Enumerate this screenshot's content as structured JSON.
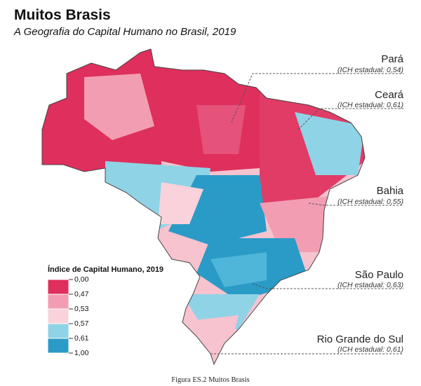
{
  "title": "Muitos Brasis",
  "subtitle": "A Geografia do Capital Humano no Brasil, 2019",
  "callouts": [
    {
      "name": "Pará",
      "label": "(ICH estadual: 0,54)"
    },
    {
      "name": "Ceará",
      "label": "(ICH estadual: 0,61)"
    },
    {
      "name": "Bahia",
      "label": "(ICH estadual: 0,55)"
    },
    {
      "name": "São Paulo",
      "label": "(ICH estadual: 0,63)"
    },
    {
      "name": "Rio Grande do Sul",
      "label": "(ICH estadual: 0,61)"
    }
  ],
  "legend": {
    "title": "Índice de Capital Humano, 2019",
    "labels": [
      "0,00",
      "0,47",
      "0,53",
      "0,57",
      "0,61",
      "1,00"
    ],
    "colors": [
      "#df2f5c",
      "#f29db2",
      "#f9d2dc",
      "#8fd3e6",
      "#2a9bc6"
    ]
  },
  "caption": "Figura ES.2 Muitos Brasis"
}
